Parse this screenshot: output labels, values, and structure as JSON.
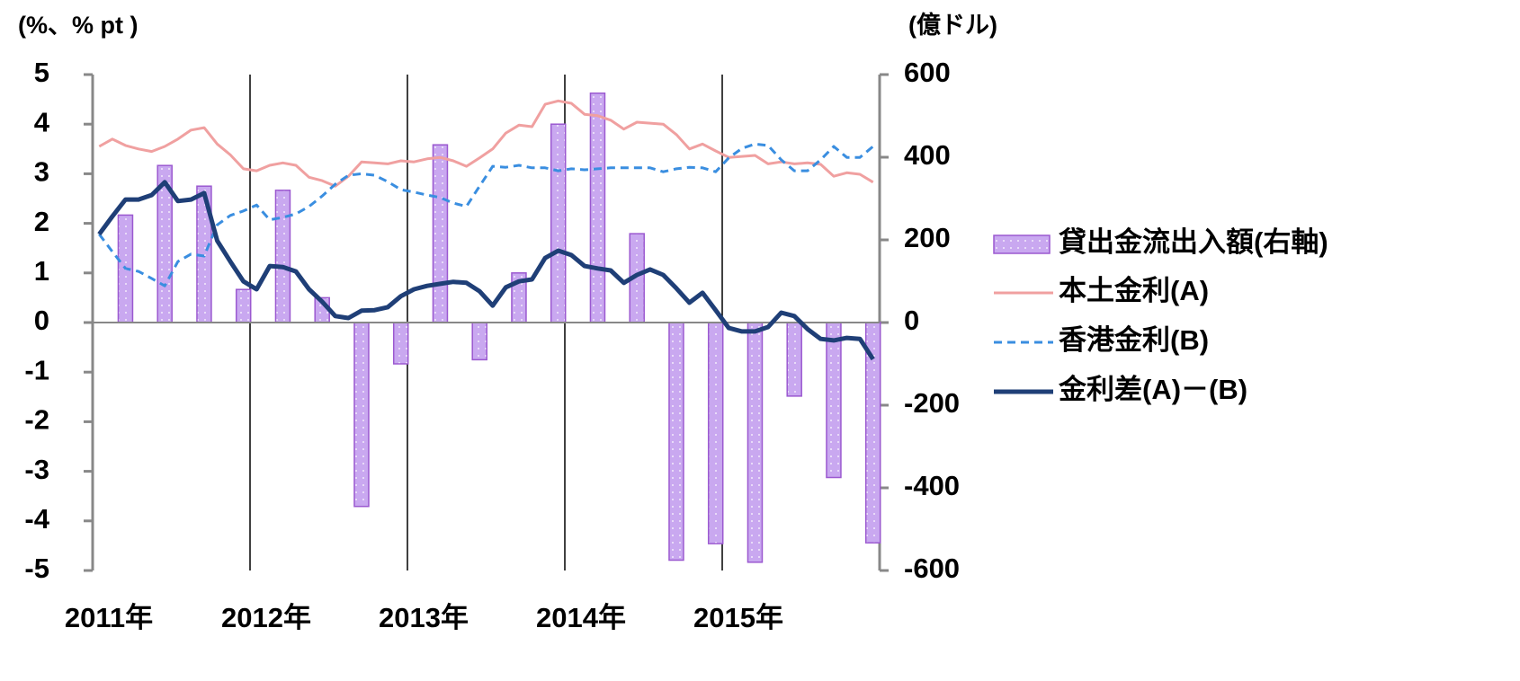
{
  "chart_data": {
    "type": "bar_line_dual",
    "y_label": "(%、% pt )",
    "y2_label": "(億ドル)",
    "categories": [
      "2011年",
      null,
      null,
      null,
      null,
      null,
      null,
      null,
      null,
      null,
      null,
      null,
      "2012年",
      null,
      null,
      null,
      null,
      null,
      null,
      null,
      null,
      null,
      null,
      null,
      "2013年",
      null,
      null,
      null,
      null,
      null,
      null,
      null,
      null,
      null,
      null,
      null,
      "2014年",
      null,
      null,
      null,
      null,
      null,
      null,
      null,
      null,
      null,
      null,
      null,
      "2015年",
      null,
      null,
      null,
      null,
      null,
      null,
      null,
      null,
      null,
      null,
      null
    ],
    "ylim": [
      -5,
      5
    ],
    "yticks": [
      -5,
      -4,
      -3,
      -2,
      -1,
      0,
      1,
      2,
      3,
      4,
      5
    ],
    "y2lim": [
      -600,
      600
    ],
    "y2ticks": [
      -600,
      -400,
      -200,
      0,
      200,
      400,
      600
    ],
    "negative_tick_color": "#ff0000",
    "legend": "right",
    "series": [
      {
        "name": "貸出金流出入額(右軸)",
        "kind": "bar",
        "axis": "y2",
        "color": "#c9a8f0",
        "edge_color": "#9b59d0",
        "values": [
          null,
          null,
          260,
          null,
          null,
          380,
          null,
          null,
          330,
          null,
          null,
          80,
          null,
          null,
          320,
          null,
          null,
          60,
          null,
          null,
          -445,
          null,
          null,
          -100,
          null,
          null,
          430,
          null,
          null,
          -90,
          null,
          null,
          120,
          null,
          null,
          480,
          null,
          null,
          555,
          null,
          null,
          215,
          null,
          null,
          -575,
          null,
          null,
          -535,
          null,
          null,
          -580,
          null,
          null,
          -178,
          null,
          null,
          -375,
          null,
          null,
          -533
        ]
      },
      {
        "name": "本土金利(A)",
        "kind": "line",
        "axis": "y",
        "color": "#f0a0a0",
        "dash": "solid",
        "values": [
          3.55,
          3.7,
          3.57,
          3.5,
          3.45,
          3.55,
          3.7,
          3.88,
          3.93,
          3.6,
          3.38,
          3.1,
          3.06,
          3.17,
          3.22,
          3.17,
          2.93,
          2.86,
          2.75,
          2.95,
          3.24,
          3.22,
          3.2,
          3.26,
          3.24,
          3.3,
          3.33,
          3.26,
          3.15,
          3.32,
          3.5,
          3.82,
          3.98,
          3.95,
          4.4,
          4.47,
          4.42,
          4.2,
          4.17,
          4.08,
          3.9,
          4.04,
          4.02,
          4.0,
          3.79,
          3.5,
          3.6,
          3.46,
          3.33,
          3.35,
          3.37,
          3.2,
          3.24,
          3.2,
          3.22,
          3.19,
          2.95,
          3.02,
          2.99,
          2.83
        ]
      },
      {
        "name": "香港金利(B)",
        "kind": "line",
        "axis": "y",
        "color": "#3a8ee0",
        "dash": "dashed",
        "values": [
          1.78,
          1.43,
          1.09,
          1.03,
          0.89,
          0.74,
          1.23,
          1.38,
          1.34,
          1.97,
          2.16,
          2.25,
          2.37,
          2.07,
          2.12,
          2.19,
          2.34,
          2.55,
          2.79,
          2.97,
          3.0,
          2.97,
          2.84,
          2.68,
          2.63,
          2.57,
          2.52,
          2.41,
          2.34,
          2.75,
          3.15,
          3.13,
          3.17,
          3.12,
          3.12,
          3.06,
          3.1,
          3.08,
          3.1,
          3.12,
          3.12,
          3.12,
          3.12,
          3.04,
          3.1,
          3.13,
          3.12,
          3.04,
          3.32,
          3.51,
          3.6,
          3.57,
          3.28,
          3.06,
          3.06,
          3.28,
          3.55,
          3.33,
          3.33,
          3.55
        ]
      },
      {
        "name": "金利差(A)－(B)",
        "kind": "line",
        "axis": "y",
        "color": "#1f3f77",
        "dash": "solid",
        "values": [
          1.78,
          2.14,
          2.48,
          2.48,
          2.57,
          2.83,
          2.45,
          2.48,
          2.61,
          1.65,
          1.23,
          0.83,
          0.67,
          1.14,
          1.12,
          1.03,
          0.67,
          0.42,
          0.13,
          0.09,
          0.24,
          0.25,
          0.31,
          0.53,
          0.67,
          0.74,
          0.78,
          0.82,
          0.8,
          0.63,
          0.34,
          0.71,
          0.83,
          0.87,
          1.3,
          1.45,
          1.36,
          1.14,
          1.09,
          1.05,
          0.8,
          0.96,
          1.07,
          0.96,
          0.69,
          0.4,
          0.6,
          0.25,
          -0.11,
          -0.18,
          -0.18,
          -0.09,
          0.2,
          0.13,
          -0.13,
          -0.33,
          -0.36,
          -0.31,
          -0.33,
          -0.74
        ]
      }
    ]
  }
}
